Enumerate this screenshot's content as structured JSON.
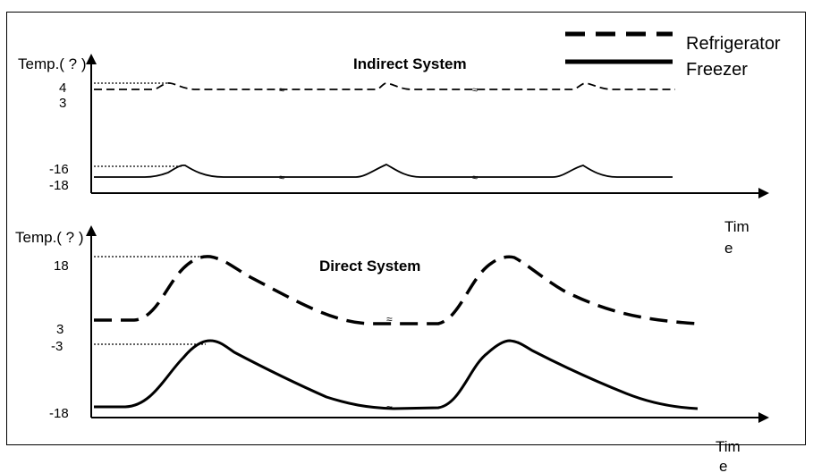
{
  "legend": {
    "refrigerator": "Refrigerator",
    "freezer": "Freezer"
  },
  "top": {
    "ylabel": "Temp.( ? )",
    "title": "Indirect System",
    "ticks": [
      "4",
      "3",
      "-16",
      "-18"
    ],
    "xlabel_line1": "Tim",
    "xlabel_line2": "e"
  },
  "bottom": {
    "ylabel": "Temp.( ? )",
    "title": "Direct System",
    "ticks": [
      "18",
      "3",
      "-3",
      "-18"
    ],
    "xlabel_line1": "Tim",
    "xlabel_line2": "e"
  },
  "break_mark": "≈",
  "colors": {
    "line": "#000000",
    "background": "#ffffff"
  }
}
